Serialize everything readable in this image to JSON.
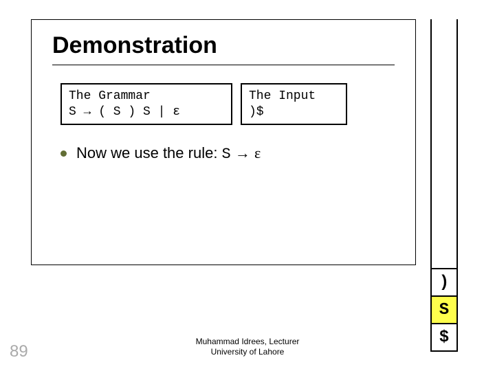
{
  "title": "Demonstration",
  "grammar": {
    "label": "The Grammar",
    "rule": "S → ( S ) S | ε"
  },
  "input": {
    "label": "The Input",
    "value": ")$"
  },
  "bullet": {
    "prefix": "Now we use the rule: ",
    "rule_lhs": "S",
    "rule_arrow": "→",
    "rule_rhs": "ε"
  },
  "stack": {
    "cells": [
      {
        "text": ")",
        "bg": "#ffffff"
      },
      {
        "text": "S",
        "bg": "#ffff4d"
      },
      {
        "text": "$",
        "bg": "#ffffff"
      }
    ]
  },
  "footer": {
    "line1": "Muhammad Idrees, Lecturer",
    "line2": "University of Lahore"
  },
  "page_number": "89",
  "colors": {
    "bullet": "#626e35",
    "page_number": "#aaaaaa",
    "highlight": "#ffff4d"
  }
}
